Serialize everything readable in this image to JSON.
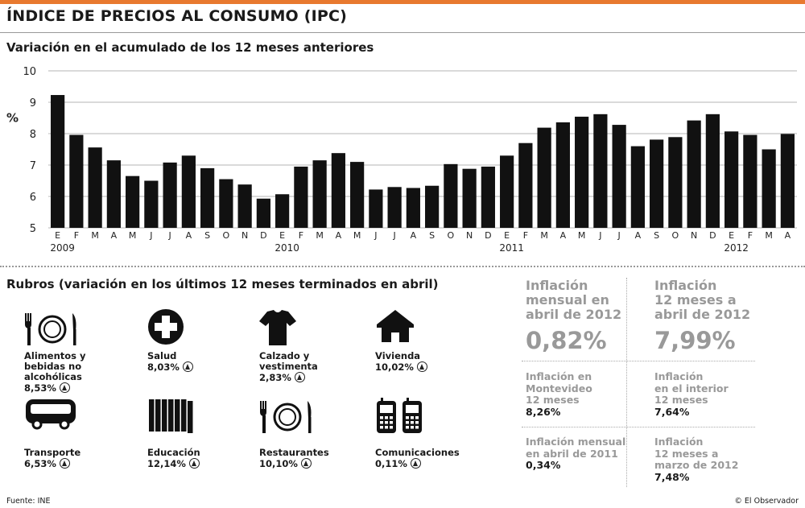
{
  "header": {
    "title": "ÍNDICE DE PRECIOS AL CONSUMO (IPC)",
    "subtitle": "Variación en el acumulado de los 12 meses anteriores"
  },
  "chart_data": {
    "type": "bar",
    "ylabel": "%",
    "ylim": [
      5,
      10
    ],
    "yticks": [
      5,
      6,
      7,
      8,
      9,
      10
    ],
    "grid": true,
    "bar_color": "#111111",
    "categories": [
      "E",
      "F",
      "M",
      "A",
      "M",
      "J",
      "J",
      "A",
      "S",
      "O",
      "N",
      "D",
      "E",
      "F",
      "M",
      "A",
      "M",
      "J",
      "J",
      "A",
      "S",
      "O",
      "N",
      "D",
      "E",
      "F",
      "M",
      "A",
      "M",
      "J",
      "J",
      "A",
      "S",
      "O",
      "N",
      "D",
      "E",
      "F",
      "M",
      "A"
    ],
    "years": [
      {
        "label": "2009",
        "index": 0
      },
      {
        "label": "2010",
        "index": 12
      },
      {
        "label": "2011",
        "index": 24
      },
      {
        "label": "2012",
        "index": 36
      }
    ],
    "values": [
      9.23,
      7.96,
      7.56,
      7.15,
      6.65,
      6.5,
      7.08,
      7.3,
      6.9,
      6.55,
      6.38,
      5.93,
      6.07,
      6.95,
      7.15,
      7.38,
      7.1,
      6.22,
      6.3,
      6.27,
      6.34,
      7.03,
      6.88,
      6.95,
      7.3,
      7.7,
      8.19,
      8.36,
      8.54,
      8.62,
      8.28,
      7.6,
      7.81,
      7.89,
      8.42,
      8.62,
      8.07,
      7.96,
      7.5,
      7.99
    ]
  },
  "rubros": {
    "title": "Rubros (variación en los últimos 12 meses terminados en abril)",
    "items": [
      {
        "icon": "cutlery-plate-icon",
        "lines": [
          "Alimentos y",
          "bebidas no",
          "alcohólicas"
        ],
        "value": "8,53%"
      },
      {
        "icon": "medical-cross-icon",
        "lines": [
          "Salud"
        ],
        "value": "8,03%"
      },
      {
        "icon": "tshirt-icon",
        "lines": [
          "Calzado y",
          "vestimenta"
        ],
        "value": "2,83%"
      },
      {
        "icon": "house-icon",
        "lines": [
          "Vivienda"
        ],
        "value": "10,02%"
      },
      {
        "icon": "bus-icon",
        "lines": [
          "Transporte"
        ],
        "value": "6,53%"
      },
      {
        "icon": "books-icon",
        "lines": [
          "Educación"
        ],
        "value": "12,14%"
      },
      {
        "icon": "cutlery-plate-icon",
        "lines": [
          "Restaurantes"
        ],
        "value": "10,10%"
      },
      {
        "icon": "cell-phones-icon",
        "lines": [
          "Comunicaciones"
        ],
        "value": "0,11%"
      }
    ]
  },
  "stats": {
    "main": [
      {
        "lines": [
          "Inflación",
          "mensual en",
          "abril de 2012"
        ],
        "value": "0,82%"
      },
      {
        "lines": [
          "Inflación",
          "12 meses a",
          "abril de 2012"
        ],
        "value": "7,99%"
      }
    ],
    "small": [
      {
        "lines": [
          "Inflación en",
          "Montevideo",
          "12 meses"
        ],
        "value": "8,26%"
      },
      {
        "lines": [
          "Inflación",
          "en el interior",
          "12 meses"
        ],
        "value": "7,64%"
      },
      {
        "lines": [
          "Inflación mensual",
          "en abril de 2011"
        ],
        "value": "0,34%"
      },
      {
        "lines": [
          "Inflación",
          "12 meses a",
          "marzo de 2012"
        ],
        "value": "7,48%"
      }
    ]
  },
  "footer": {
    "source": "Fuente: INE",
    "credit": "© El Observador"
  }
}
